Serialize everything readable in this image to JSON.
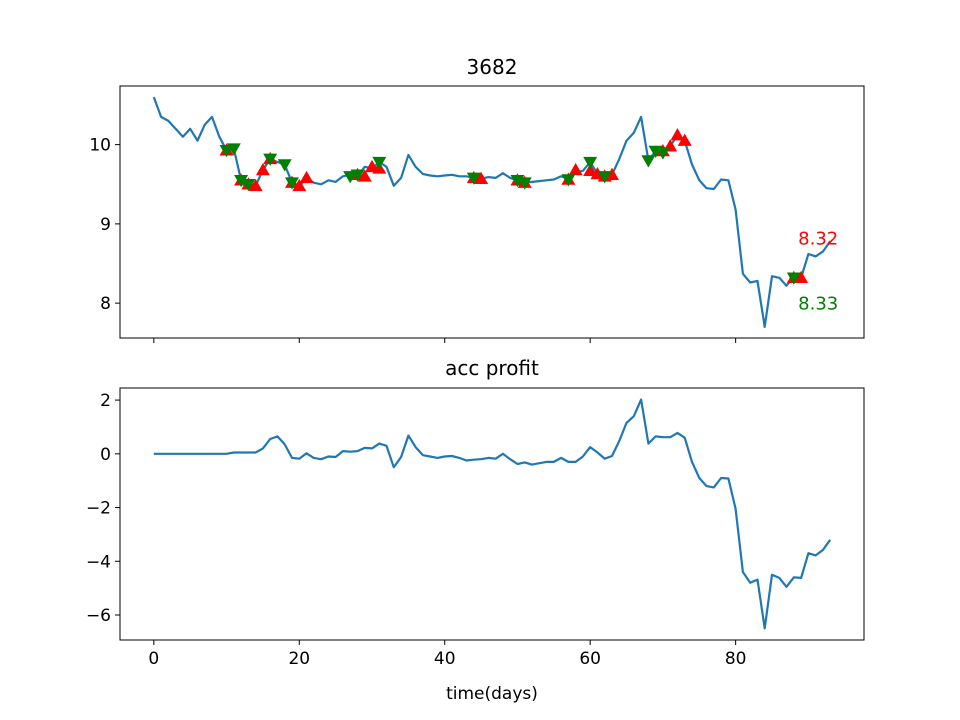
{
  "chart_data": [
    {
      "type": "line",
      "title": "3682",
      "xlabel": "",
      "ylabel": "",
      "xlim": [
        -4.65,
        97.65
      ],
      "ylim": [
        7.56,
        10.74
      ],
      "xticks": [
        0,
        20,
        40,
        60,
        80
      ],
      "show_xtick_labels": false,
      "yticks": [
        8,
        9,
        10
      ],
      "ytick_labels": [
        "8",
        "9",
        "10"
      ],
      "grid": false,
      "colors": {
        "line": "#1f77b4",
        "buy_marker": "#ff0000",
        "sell_marker": "#008000"
      },
      "series": [
        {
          "x": [
            0,
            1,
            2,
            3,
            4,
            5,
            6,
            7,
            8,
            9,
            10,
            11,
            12,
            13,
            14,
            15,
            16,
            17,
            18,
            19,
            20,
            21,
            22,
            23,
            24,
            25,
            26,
            27,
            28,
            29,
            30,
            31,
            32,
            33,
            34,
            35,
            36,
            37,
            38,
            39,
            40,
            41,
            42,
            43,
            44,
            45,
            46,
            47,
            48,
            49,
            50,
            51,
            52,
            53,
            54,
            55,
            56,
            57,
            58,
            59,
            60,
            61,
            62,
            63,
            64,
            65,
            66,
            67,
            68,
            69,
            70,
            71,
            72,
            73,
            74,
            75,
            76,
            77,
            78,
            79,
            80,
            81,
            82,
            83,
            84,
            85,
            86,
            87,
            88,
            89,
            90,
            91,
            92,
            93
          ],
          "y": [
            10.6,
            10.35,
            10.3,
            10.2,
            10.1,
            10.2,
            10.05,
            10.25,
            10.35,
            10.1,
            9.93,
            9.95,
            9.55,
            9.5,
            9.48,
            9.68,
            9.82,
            9.78,
            9.75,
            9.52,
            9.48,
            9.58,
            9.52,
            9.5,
            9.55,
            9.53,
            9.6,
            9.62,
            9.6,
            9.72,
            9.7,
            9.78,
            9.72,
            9.48,
            9.58,
            9.87,
            9.72,
            9.63,
            9.61,
            9.6,
            9.61,
            9.62,
            9.6,
            9.6,
            9.58,
            9.57,
            9.59,
            9.58,
            9.64,
            9.58,
            9.55,
            9.52,
            9.53,
            9.54,
            9.55,
            9.56,
            9.6,
            9.57,
            9.65,
            9.67,
            9.78,
            9.63,
            9.6,
            9.62,
            9.82,
            10.05,
            10.15,
            10.35,
            9.8,
            9.92,
            9.9,
            9.98,
            10.12,
            10.05,
            9.75,
            9.55,
            9.45,
            9.44,
            9.56,
            9.55,
            9.18,
            8.37,
            8.26,
            8.28,
            7.7,
            8.34,
            8.32,
            8.22,
            8.34,
            8.32,
            8.62,
            8.59,
            8.65,
            8.78
          ]
        }
      ],
      "buy_markers": {
        "x": [
          10,
          12,
          13,
          14,
          15,
          16,
          19,
          20,
          21,
          28,
          29,
          30,
          31,
          44,
          45,
          50,
          51,
          57,
          58,
          60,
          61,
          62,
          63,
          70,
          71,
          72,
          73,
          88,
          89
        ],
        "y": [
          9.93,
          9.55,
          9.5,
          9.48,
          9.68,
          9.82,
          9.52,
          9.48,
          9.58,
          9.62,
          9.6,
          9.72,
          9.7,
          9.58,
          9.57,
          9.55,
          9.52,
          9.56,
          9.68,
          9.67,
          9.63,
          9.6,
          9.62,
          9.92,
          9.98,
          10.12,
          10.05,
          8.32,
          8.32
        ]
      },
      "sell_markers": {
        "x": [
          10,
          11,
          12,
          13,
          16,
          18,
          19,
          27,
          28,
          31,
          44,
          50,
          51,
          57,
          60,
          62,
          68,
          69,
          70,
          88
        ],
        "y": [
          9.93,
          9.95,
          9.55,
          9.5,
          9.82,
          9.75,
          9.52,
          9.6,
          9.62,
          9.78,
          9.58,
          9.55,
          9.52,
          9.56,
          9.78,
          9.6,
          9.8,
          9.92,
          9.9,
          8.32
        ]
      },
      "annotations": [
        {
          "text": "8.32",
          "x": 88.6,
          "y": 8.74,
          "color": "#ff0000"
        },
        {
          "text": "8.33",
          "x": 88.6,
          "y": 7.92,
          "color": "#008000"
        }
      ]
    },
    {
      "type": "line",
      "title": "acc profit",
      "xlabel": "time(days)",
      "ylabel": "",
      "xlim": [
        -4.65,
        97.65
      ],
      "ylim": [
        -6.93,
        2.45
      ],
      "xticks": [
        0,
        20,
        40,
        60,
        80
      ],
      "xtick_labels": [
        "0",
        "20",
        "40",
        "60",
        "80"
      ],
      "yticks": [
        -6,
        -4,
        -2,
        0,
        2
      ],
      "ytick_labels": [
        "−6",
        "−4",
        "−2",
        "0",
        "2"
      ],
      "grid": false,
      "series": [
        {
          "x": [
            0,
            1,
            2,
            3,
            4,
            5,
            6,
            7,
            8,
            9,
            10,
            11,
            12,
            13,
            14,
            15,
            16,
            17,
            18,
            19,
            20,
            21,
            22,
            23,
            24,
            25,
            26,
            27,
            28,
            29,
            30,
            31,
            32,
            33,
            34,
            35,
            36,
            37,
            38,
            39,
            40,
            41,
            42,
            43,
            44,
            45,
            46,
            47,
            48,
            49,
            50,
            51,
            52,
            53,
            54,
            55,
            56,
            57,
            58,
            59,
            60,
            61,
            62,
            63,
            64,
            65,
            66,
            67,
            68,
            69,
            70,
            71,
            72,
            73,
            74,
            75,
            76,
            77,
            78,
            79,
            80,
            81,
            82,
            83,
            84,
            85,
            86,
            87,
            88,
            89,
            90,
            91,
            92,
            93
          ],
          "y": [
            0,
            0,
            0,
            0,
            0,
            0,
            0,
            0,
            0,
            0,
            0,
            0.05,
            0.05,
            0.05,
            0.05,
            0.2,
            0.55,
            0.65,
            0.35,
            -0.15,
            -0.18,
            0.02,
            -0.15,
            -0.2,
            -0.1,
            -0.12,
            0.1,
            0.08,
            0.1,
            0.22,
            0.2,
            0.38,
            0.3,
            -0.5,
            -0.12,
            0.68,
            0.25,
            -0.05,
            -0.1,
            -0.15,
            -0.1,
            -0.08,
            -0.15,
            -0.25,
            -0.22,
            -0.2,
            -0.15,
            -0.18,
            0,
            -0.2,
            -0.38,
            -0.32,
            -0.4,
            -0.35,
            -0.3,
            -0.3,
            -0.15,
            -0.3,
            -0.3,
            -0.1,
            0.25,
            0.05,
            -0.18,
            -0.08,
            0.48,
            1.15,
            1.4,
            2.02,
            0.38,
            0.65,
            0.62,
            0.62,
            0.78,
            0.6,
            -0.3,
            -0.9,
            -1.2,
            -1.25,
            -0.9,
            -0.92,
            -2.05,
            -4.4,
            -4.8,
            -4.68,
            -6.5,
            -4.5,
            -4.62,
            -4.95,
            -4.6,
            -4.62,
            -3.7,
            -3.78,
            -3.58,
            -3.2
          ]
        }
      ]
    }
  ]
}
